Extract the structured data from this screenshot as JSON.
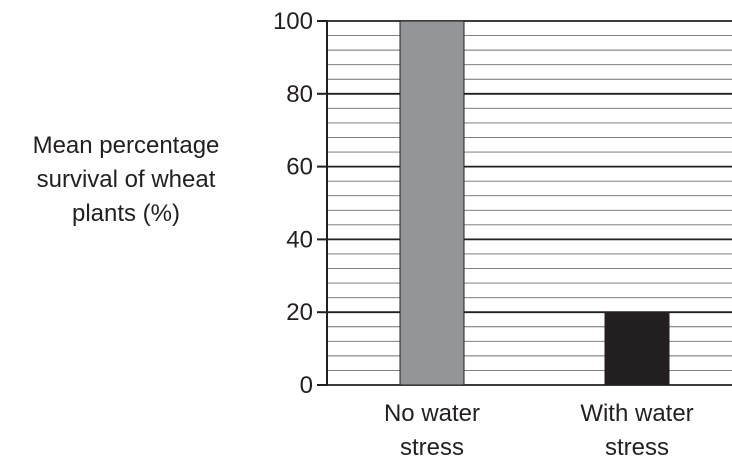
{
  "chart_data": {
    "type": "bar",
    "title": "",
    "xlabel": "",
    "ylabel_lines": [
      "Mean percentage",
      "survival of wheat",
      "plants (%)"
    ],
    "categories": [
      {
        "lines": [
          "No water",
          "stress"
        ]
      },
      {
        "lines": [
          "With water",
          "stress"
        ]
      }
    ],
    "values": [
      100,
      20
    ],
    "bar_colors": [
      "#939598",
      "#231f20"
    ],
    "ylim": [
      0,
      100
    ],
    "yticks": [
      0,
      20,
      40,
      60,
      80,
      100
    ],
    "minor_grid_step": 4,
    "grid": true,
    "legend": "none"
  }
}
